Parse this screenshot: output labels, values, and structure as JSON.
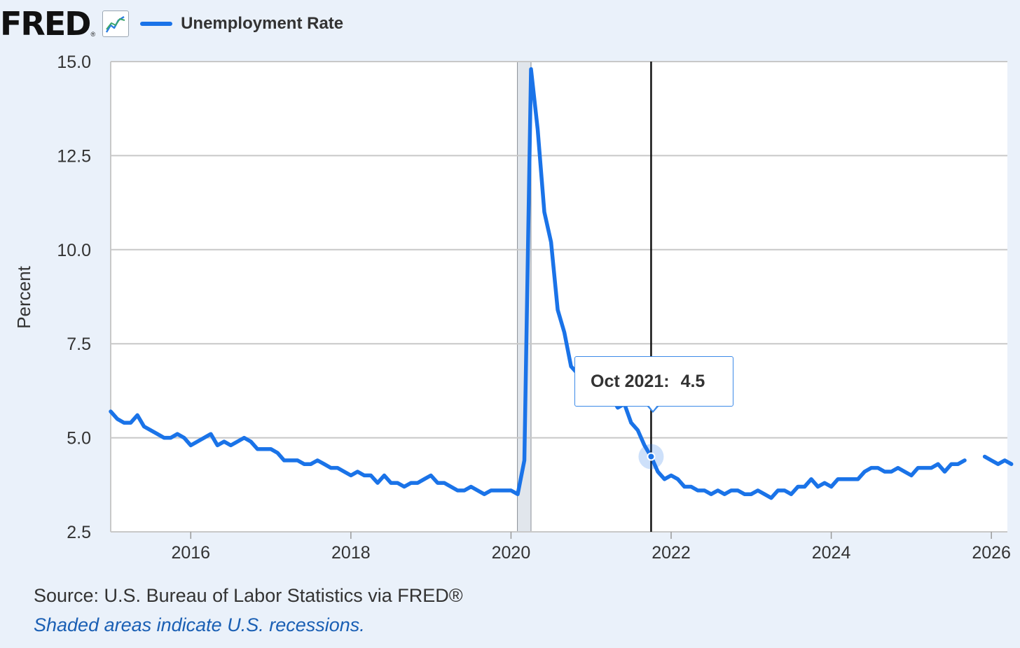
{
  "header": {
    "logo_text": "FRED",
    "logo_reg": "®",
    "logo_icon": "line-chart-icon",
    "legend_label": "Unemployment Rate",
    "series_color": "#1a73e8"
  },
  "tooltip": {
    "date": "Oct 2021:",
    "value": "4.5"
  },
  "footer": {
    "source": "Source: U.S. Bureau of Labor Statistics via FRED®",
    "note": "Shaded areas indicate U.S. recessions."
  },
  "chart_data": {
    "type": "line",
    "title": "",
    "xlabel": "",
    "ylabel": "Percent",
    "xlim": [
      2015.0,
      2026.2
    ],
    "ylim": [
      2.5,
      15.0
    ],
    "yticks": [
      2.5,
      5.0,
      7.5,
      10.0,
      12.5,
      15.0
    ],
    "ytick_labels": [
      "2.5",
      "5.0",
      "7.5",
      "10.0",
      "12.5",
      "15.0"
    ],
    "xticks": [
      2016,
      2018,
      2020,
      2022,
      2024,
      2026
    ],
    "xtick_labels": [
      "2016",
      "2018",
      "2020",
      "2022",
      "2024",
      "2026"
    ],
    "grid": true,
    "recession_shading": [
      [
        2020.08,
        2020.25
      ]
    ],
    "highlight": {
      "x": 2021.75,
      "y": 4.5,
      "label": "Oct 2021"
    },
    "series": [
      {
        "name": "Unemployment Rate",
        "start": "2015-01",
        "frequency": "monthly",
        "values": [
          5.7,
          5.5,
          5.4,
          5.4,
          5.6,
          5.3,
          5.2,
          5.1,
          5.0,
          5.0,
          5.1,
          5.0,
          4.8,
          4.9,
          5.0,
          5.1,
          4.8,
          4.9,
          4.8,
          4.9,
          5.0,
          4.9,
          4.7,
          4.7,
          4.7,
          4.6,
          4.4,
          4.4,
          4.4,
          4.3,
          4.3,
          4.4,
          4.3,
          4.2,
          4.2,
          4.1,
          4.0,
          4.1,
          4.0,
          4.0,
          3.8,
          4.0,
          3.8,
          3.8,
          3.7,
          3.8,
          3.8,
          3.9,
          4.0,
          3.8,
          3.8,
          3.7,
          3.6,
          3.6,
          3.7,
          3.6,
          3.5,
          3.6,
          3.6,
          3.6,
          3.6,
          3.5,
          4.4,
          14.8,
          13.2,
          11.0,
          10.2,
          8.4,
          7.8,
          6.9,
          6.7,
          6.7,
          6.4,
          6.2,
          6.1,
          6.1,
          5.8,
          5.9,
          5.4,
          5.2,
          4.8,
          4.5,
          4.1,
          3.9,
          4.0,
          3.9,
          3.7,
          3.7,
          3.6,
          3.6,
          3.5,
          3.6,
          3.5,
          3.6,
          3.6,
          3.5,
          3.5,
          3.6,
          3.5,
          3.4,
          3.6,
          3.6,
          3.5,
          3.7,
          3.7,
          3.9,
          3.7,
          3.8,
          3.7,
          3.9,
          3.9,
          3.9,
          3.9,
          4.1,
          4.2,
          4.2,
          4.1,
          4.1,
          4.2,
          4.1,
          4.0,
          4.2,
          4.2,
          4.2,
          4.3,
          4.1,
          4.3,
          4.3,
          4.4,
          null,
          null,
          4.5,
          4.4,
          4.3,
          4.4,
          4.3
        ]
      }
    ]
  }
}
